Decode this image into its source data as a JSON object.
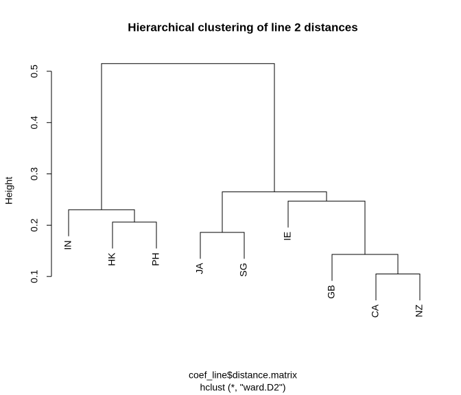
{
  "chart_data": {
    "type": "dendrogram",
    "title": "Hierarchical clustering of line 2 distances",
    "y_label": "Height",
    "x_label": "coef_line$distance.matrix",
    "subtitle": "hclust (*, \"ward.D2\")",
    "ylim": [
      0.0,
      0.54
    ],
    "yticks": [
      0.1,
      0.2,
      0.3,
      0.4,
      0.5
    ],
    "hang": 0.1,
    "color": "#000000",
    "tree": {
      "height": 0.515,
      "children": [
        {
          "height": 0.23,
          "children": [
            "IN",
            {
              "height": 0.206,
              "children": [
                "HK",
                "PH"
              ]
            }
          ]
        },
        {
          "height": 0.265,
          "children": [
            {
              "height": 0.186,
              "children": [
                "JA",
                "SG"
              ]
            },
            {
              "height": 0.247,
              "children": [
                "IE",
                {
                  "height": 0.143,
                  "children": [
                    "GB",
                    {
                      "height": 0.105,
                      "children": [
                        "CA",
                        "NZ"
                      ]
                    }
                  ]
                }
              ]
            }
          ]
        }
      ]
    }
  }
}
